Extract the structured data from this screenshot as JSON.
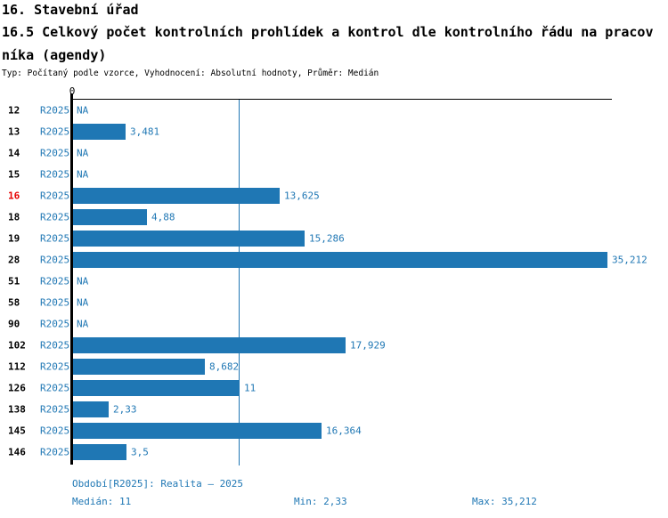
{
  "header": {
    "title_line1": "16. Stavební úřad",
    "title_line2": "16.5 Celkový počet kontrolních prohlídek a kontrol dle kontrolního řádu na pracov",
    "title_line3": "níka (agendy)",
    "meta": "Typ: Počítaný podle vzorce, Vyhodnocení: Absolutní hodnoty, Průměr: Medián"
  },
  "chart_data": {
    "type": "bar",
    "orientation": "horizontal",
    "axis_tick_label": "0",
    "xlim": [
      0,
      35.5
    ],
    "bar_color": "#1f77b4",
    "highlight_color": "#e60000",
    "median_value": 11,
    "min_value": 2.33,
    "max_value": 35.212,
    "categories": [
      "12",
      "13",
      "14",
      "15",
      "16",
      "18",
      "19",
      "28",
      "51",
      "58",
      "90",
      "102",
      "112",
      "126",
      "138",
      "145",
      "146"
    ],
    "rows": [
      {
        "id": "12",
        "period": "R2025",
        "label": "NA",
        "value": null,
        "highlight": false
      },
      {
        "id": "13",
        "period": "R2025",
        "label": "3,481",
        "value": 3.481,
        "highlight": false
      },
      {
        "id": "14",
        "period": "R2025",
        "label": "NA",
        "value": null,
        "highlight": false
      },
      {
        "id": "15",
        "period": "R2025",
        "label": "NA",
        "value": null,
        "highlight": false
      },
      {
        "id": "16",
        "period": "R2025",
        "label": "13,625",
        "value": 13.625,
        "highlight": true
      },
      {
        "id": "18",
        "period": "R2025",
        "label": "4,88",
        "value": 4.88,
        "highlight": false
      },
      {
        "id": "19",
        "period": "R2025",
        "label": "15,286",
        "value": 15.286,
        "highlight": false
      },
      {
        "id": "28",
        "period": "R2025",
        "label": "35,212",
        "value": 35.212,
        "highlight": false
      },
      {
        "id": "51",
        "period": "R2025",
        "label": "NA",
        "value": null,
        "highlight": false
      },
      {
        "id": "58",
        "period": "R2025",
        "label": "NA",
        "value": null,
        "highlight": false
      },
      {
        "id": "90",
        "period": "R2025",
        "label": "NA",
        "value": null,
        "highlight": false
      },
      {
        "id": "102",
        "period": "R2025",
        "label": "17,929",
        "value": 17.929,
        "highlight": false
      },
      {
        "id": "112",
        "period": "R2025",
        "label": "8,682",
        "value": 8.682,
        "highlight": false
      },
      {
        "id": "126",
        "period": "R2025",
        "label": "11",
        "value": 11,
        "highlight": false
      },
      {
        "id": "138",
        "period": "R2025",
        "label": "2,33",
        "value": 2.33,
        "highlight": false
      },
      {
        "id": "145",
        "period": "R2025",
        "label": "16,364",
        "value": 16.364,
        "highlight": false
      },
      {
        "id": "146",
        "period": "R2025",
        "label": "3,5",
        "value": 3.5,
        "highlight": false
      }
    ]
  },
  "footer": {
    "period_line": "Období[R2025]: Realita – 2025",
    "median_label": "Medián: 11",
    "min_label": "Min: 2,33",
    "max_label": "Max: 35,212"
  }
}
